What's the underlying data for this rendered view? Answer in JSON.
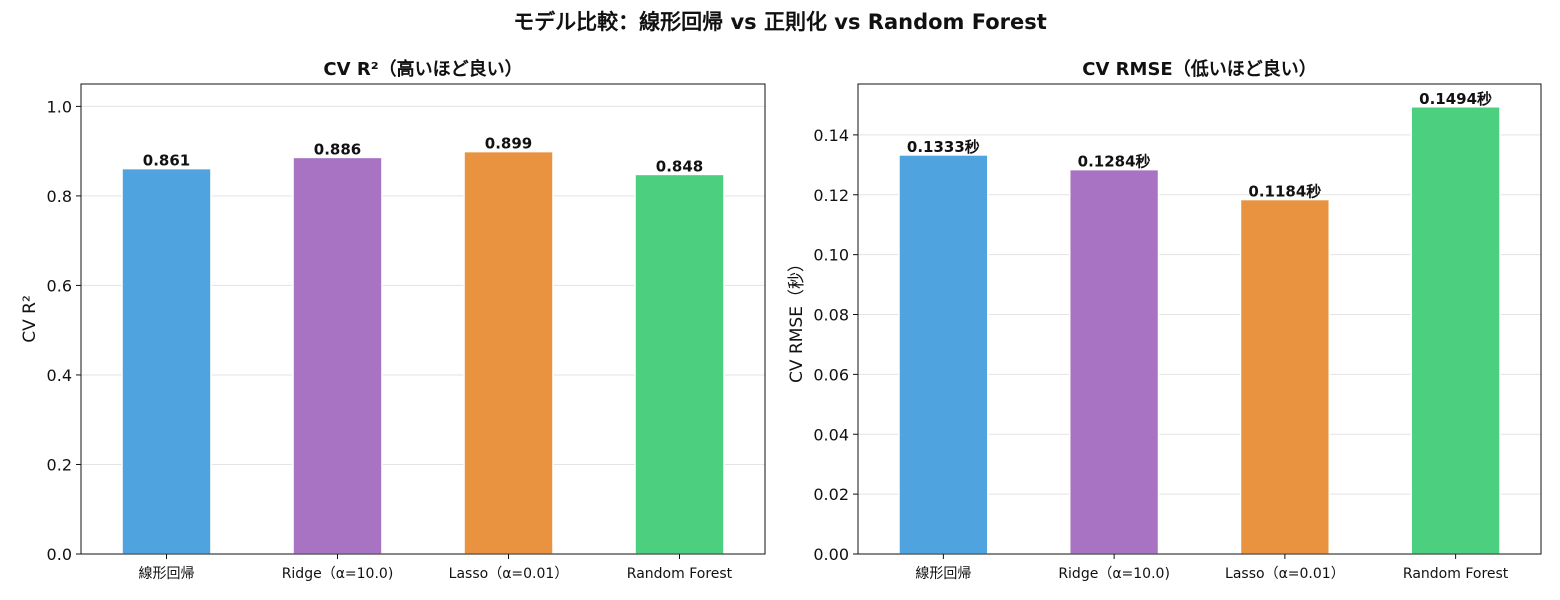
{
  "figure": {
    "title": "モデル比較：線形回帰 vs 正則化 vs Random Forest"
  },
  "chart_data": [
    {
      "type": "bar",
      "title": "CV R²（高いほど良い）",
      "xlabel": "",
      "ylabel": "CV R²",
      "categories": [
        "線形回帰",
        "Ridge（α=10.0)",
        "Lasso（α=0.01）",
        "Random Forest"
      ],
      "values": [
        0.861,
        0.886,
        0.899,
        0.848
      ],
      "value_labels": [
        "0.861",
        "0.886",
        "0.899",
        "0.848"
      ],
      "colors": [
        "#4fa4e0",
        "#a873c3",
        "#e99341",
        "#4cd07f"
      ],
      "ylim": [
        0,
        1.05
      ],
      "yticks": [
        0.0,
        0.2,
        0.4,
        0.6,
        0.8,
        1.0
      ],
      "ytick_labels": [
        "0.0",
        "0.2",
        "0.4",
        "0.6",
        "0.8",
        "1.0"
      ],
      "grid": "y"
    },
    {
      "type": "bar",
      "title": "CV RMSE（低いほど良い）",
      "xlabel": "",
      "ylabel": "CV RMSE（秒）",
      "categories": [
        "線形回帰",
        "Ridge（α=10.0)",
        "Lasso（α=0.01）",
        "Random Forest"
      ],
      "values": [
        0.1333,
        0.1284,
        0.1184,
        0.1494
      ],
      "value_labels": [
        "0.1333秒",
        "0.1284秒",
        "0.1184秒",
        "0.1494秒"
      ],
      "colors": [
        "#4fa4e0",
        "#a873c3",
        "#e99341",
        "#4cd07f"
      ],
      "ylim": [
        0,
        0.157
      ],
      "yticks": [
        0.0,
        0.02,
        0.04,
        0.06,
        0.08,
        0.1,
        0.12,
        0.14
      ],
      "ytick_labels": [
        "0.00",
        "0.02",
        "0.04",
        "0.06",
        "0.08",
        "0.10",
        "0.12",
        "0.14"
      ],
      "grid": "y"
    }
  ]
}
